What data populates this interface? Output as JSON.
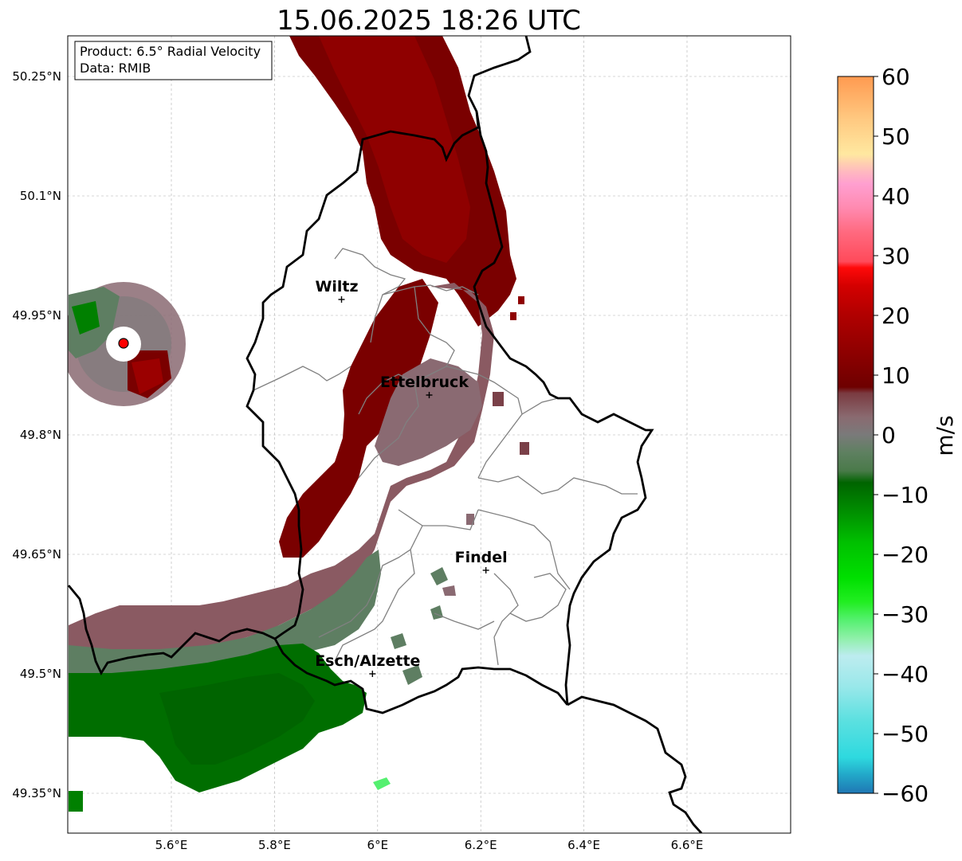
{
  "title": "15.06.2025 18:26 UTC",
  "info_box": {
    "product": "Product: 6.5° Radial Velocity",
    "source": "Data: RMIB"
  },
  "map": {
    "lon_range": [
      5.4,
      6.8
    ],
    "lat_range": [
      49.3,
      50.3
    ],
    "lon_ticks": [
      {
        "value": 5.6,
        "label": "5.6°E"
      },
      {
        "value": 5.8,
        "label": "5.8°E"
      },
      {
        "value": 6.0,
        "label": "6°E"
      },
      {
        "value": 6.2,
        "label": "6.2°E"
      },
      {
        "value": 6.4,
        "label": "6.4°E"
      },
      {
        "value": 6.6,
        "label": "6.6°E"
      }
    ],
    "lat_ticks": [
      {
        "value": 50.25,
        "label": "50.25°N"
      },
      {
        "value": 50.1,
        "label": "50.1°N"
      },
      {
        "value": 49.95,
        "label": "49.95°N"
      },
      {
        "value": 49.8,
        "label": "49.8°N"
      },
      {
        "value": 49.65,
        "label": "49.65°N"
      },
      {
        "value": 49.5,
        "label": "49.5°N"
      },
      {
        "value": 49.35,
        "label": "49.35°N"
      }
    ],
    "gridlines": true,
    "cities": [
      {
        "name": "Wiltz",
        "lon": 5.93,
        "lat": 49.97
      },
      {
        "name": "Ettelbruck",
        "lon": 6.1,
        "lat": 49.85
      },
      {
        "name": "Findel",
        "lon": 6.21,
        "lat": 49.63
      },
      {
        "name": "Esch/Alzette",
        "lon": 5.99,
        "lat": 49.5
      }
    ],
    "radar_site": {
      "lon": 5.505,
      "lat": 49.915,
      "color": "#ff0000"
    }
  },
  "colorbar": {
    "label": "m/s",
    "min": -60,
    "max": 60,
    "ticks": [
      {
        "value": 60,
        "label": "60"
      },
      {
        "value": 50,
        "label": "50"
      },
      {
        "value": 40,
        "label": "40"
      },
      {
        "value": 30,
        "label": "30"
      },
      {
        "value": 20,
        "label": "20"
      },
      {
        "value": 10,
        "label": "10"
      },
      {
        "value": 0,
        "label": "0"
      },
      {
        "value": -10,
        "label": "−10"
      },
      {
        "value": -20,
        "label": "−20"
      },
      {
        "value": -30,
        "label": "−30"
      },
      {
        "value": -40,
        "label": "−40"
      },
      {
        "value": -50,
        "label": "−50"
      },
      {
        "value": -60,
        "label": "−60"
      }
    ],
    "stops": [
      {
        "v": -60,
        "color": "#1f77b4"
      },
      {
        "v": -57,
        "color": "#22a6c8"
      },
      {
        "v": -54,
        "color": "#2ed9df"
      },
      {
        "v": -48,
        "color": "#5ae0e0"
      },
      {
        "v": -42,
        "color": "#9ae8ea"
      },
      {
        "v": -37,
        "color": "#bdecef"
      },
      {
        "v": -34,
        "color": "#8ef0a8"
      },
      {
        "v": -31,
        "color": "#55f070"
      },
      {
        "v": -28,
        "color": "#22ee22"
      },
      {
        "v": -24,
        "color": "#00e000"
      },
      {
        "v": -18,
        "color": "#00c000"
      },
      {
        "v": -13,
        "color": "#009000"
      },
      {
        "v": -8,
        "color": "#006400"
      },
      {
        "v": -6,
        "color": "#4a7a4a"
      },
      {
        "v": -3,
        "color": "#5e8060"
      },
      {
        "v": 0,
        "color": "#7a7a7a"
      },
      {
        "v": 3,
        "color": "#8a6a70"
      },
      {
        "v": 7,
        "color": "#7a3a40"
      },
      {
        "v": 8,
        "color": "#6e0000"
      },
      {
        "v": 14,
        "color": "#8f0000"
      },
      {
        "v": 20,
        "color": "#b00000"
      },
      {
        "v": 25,
        "color": "#d40000"
      },
      {
        "v": 28,
        "color": "#ff0a0a"
      },
      {
        "v": 29,
        "color": "#ff4a5a"
      },
      {
        "v": 34,
        "color": "#ff6a80"
      },
      {
        "v": 38,
        "color": "#ff8ab0"
      },
      {
        "v": 42,
        "color": "#ff9fd0"
      },
      {
        "v": 44,
        "color": "#ffb8c0"
      },
      {
        "v": 47,
        "color": "#ffe8a0"
      },
      {
        "v": 53,
        "color": "#ffc880"
      },
      {
        "v": 60,
        "color": "#ff9a50"
      }
    ]
  },
  "colors": {
    "outbound_strong": "#7a0000",
    "outbound_weak": "#8a5a62",
    "near_zero_inbound": "#5e7e62",
    "inbound_strong": "#007000",
    "country_border": "#000000",
    "canton_border": "#808080"
  }
}
